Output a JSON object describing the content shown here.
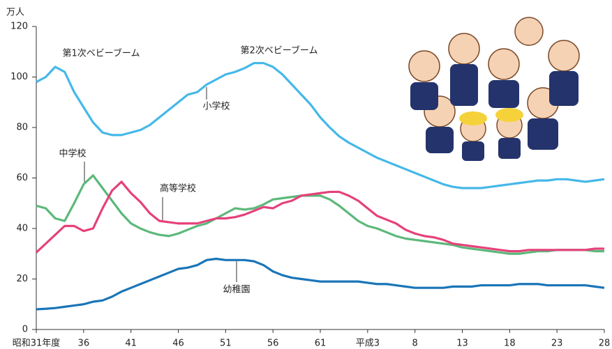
{
  "chart_data": {
    "type": "line",
    "ylabel": "万人",
    "ylim": [
      0,
      120
    ],
    "yticks": [
      0,
      20,
      40,
      60,
      80,
      100,
      120
    ],
    "categories": [
      "昭和31年度",
      null,
      null,
      null,
      null,
      "36",
      null,
      null,
      null,
      null,
      "41",
      null,
      null,
      null,
      null,
      "46",
      null,
      null,
      null,
      null,
      "51",
      null,
      null,
      null,
      null,
      "56",
      null,
      null,
      null,
      null,
      "61",
      null,
      null,
      null,
      null,
      "平成3",
      null,
      null,
      null,
      null,
      "8",
      null,
      null,
      null,
      null,
      "13",
      null,
      null,
      null,
      null,
      "18",
      null,
      null,
      null,
      null,
      "23",
      null,
      null,
      null,
      null,
      "28"
    ],
    "series": [
      {
        "name": "小学校",
        "color": "#45b8e8",
        "values": [
          98,
          100,
          104,
          102,
          94,
          88,
          82,
          78,
          77,
          77,
          78,
          79,
          81,
          84,
          87,
          90,
          93,
          94,
          97,
          99,
          101,
          102,
          103.5,
          105.5,
          105.5,
          104,
          101,
          97,
          93,
          89,
          84,
          80,
          76.5,
          74,
          72,
          70,
          68,
          66.5,
          65,
          63.5,
          62,
          60.5,
          59,
          57.5,
          56.5,
          56,
          56,
          56,
          56.5,
          57,
          57.5,
          58,
          58.5,
          59,
          59,
          59.5,
          59.5,
          59,
          58.5,
          59,
          59.5
        ]
      },
      {
        "name": "中学校",
        "color": "#5cb87a",
        "values": [
          49,
          48,
          44,
          43,
          50,
          57.5,
          61,
          56,
          51,
          46,
          42,
          40,
          38.5,
          37.5,
          37,
          38,
          39.5,
          41,
          42,
          44,
          46,
          48,
          47.5,
          48,
          49.5,
          51.5,
          52,
          52.5,
          53,
          53,
          53,
          51.5,
          49,
          46,
          43,
          41,
          40,
          38.5,
          37,
          36,
          35.5,
          35,
          34.5,
          34,
          33.5,
          32.5,
          32,
          31.5,
          31,
          30.5,
          30,
          30,
          30.5,
          31,
          31,
          31.5,
          31.5,
          31.5,
          31.5,
          31,
          31
        ]
      },
      {
        "name": "高等学校",
        "color": "#e5417a",
        "values": [
          30.5,
          34,
          37.5,
          41,
          41,
          39,
          40,
          48,
          55,
          58.5,
          54,
          50.5,
          46,
          43,
          42.5,
          42,
          42,
          42,
          43,
          44,
          44,
          44.5,
          45.5,
          47,
          48.5,
          48,
          50,
          51,
          53,
          53.5,
          54,
          54.5,
          54.5,
          53,
          51,
          48,
          45,
          43.5,
          42,
          39.5,
          38,
          37,
          36.5,
          35.5,
          34,
          33.5,
          33,
          32.5,
          32,
          31.5,
          31,
          31,
          31.5,
          31.5,
          31.5,
          31.5,
          31.5,
          31.5,
          31.5,
          32,
          32
        ]
      },
      {
        "name": "幼稚園",
        "color": "#1a75b8",
        "values": [
          8,
          8.2,
          8.5,
          9,
          9.5,
          10,
          11,
          11.5,
          13,
          15,
          16.5,
          18,
          19.5,
          21,
          22.5,
          24,
          24.5,
          25.5,
          27.5,
          28,
          27.5,
          27.5,
          27.5,
          27,
          25.5,
          23,
          21.5,
          20.5,
          20,
          19.5,
          19,
          19,
          19,
          19,
          19,
          18.5,
          18,
          18,
          17.5,
          17,
          16.5,
          16.5,
          16.5,
          16.5,
          17,
          17,
          17,
          17.5,
          17.5,
          17.5,
          17.5,
          18,
          18,
          18,
          17.5,
          17.5,
          17.5,
          17.5,
          17.5,
          17,
          16.5
        ]
      }
    ],
    "annotations": [
      "第1次ベビーブーム",
      "第2次ベビーブーム"
    ]
  }
}
